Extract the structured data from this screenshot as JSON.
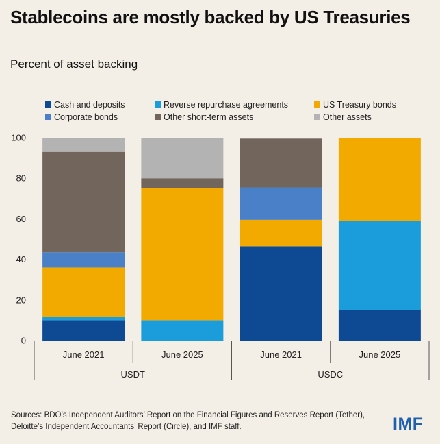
{
  "title": "Stablecoins are mostly backed by US Treasuries",
  "subtitle": "Percent of asset backing",
  "source": "Sources: BDO’s Independent Auditors’ Report on the Financial Figures and Reserves Report (Tether), Deloitte’s Independent Accountants’ Report (Circle), and IMF staff.",
  "logo": "IMF",
  "colors": {
    "Cash and deposits": "#0e4a94",
    "Reverse repurchase agreements": "#1b9ddb",
    "US Treasury bonds": "#f2a900",
    "Corporate bonds": "#4a80c8",
    "Other short-term assets": "#72655c",
    "Other assets": "#b3b3b3"
  },
  "chart_data": {
    "type": "bar",
    "stacked": true,
    "ylim": [
      0,
      100
    ],
    "yticks": [
      0,
      20,
      40,
      60,
      80,
      100
    ],
    "legend_position": "top",
    "categories": [
      "June 2021",
      "June 2025",
      "June 2021",
      "June 2025"
    ],
    "groups": [
      {
        "label": "USDT",
        "categories": [
          0,
          1
        ]
      },
      {
        "label": "USDC",
        "categories": [
          2,
          3
        ]
      }
    ],
    "series": [
      {
        "name": "Cash and deposits",
        "values": [
          10,
          0,
          46.5,
          15
        ]
      },
      {
        "name": "Reverse repurchase agreements",
        "values": [
          1.5,
          10,
          0,
          44
        ]
      },
      {
        "name": "US Treasury bonds",
        "values": [
          24.5,
          65,
          13,
          41
        ]
      },
      {
        "name": "Corporate bonds",
        "values": [
          7.5,
          0,
          16,
          0
        ]
      },
      {
        "name": "Other short-term assets",
        "values": [
          49.5,
          5,
          24,
          0
        ]
      },
      {
        "name": "Other assets",
        "values": [
          7,
          20,
          0.5,
          0
        ]
      }
    ]
  }
}
